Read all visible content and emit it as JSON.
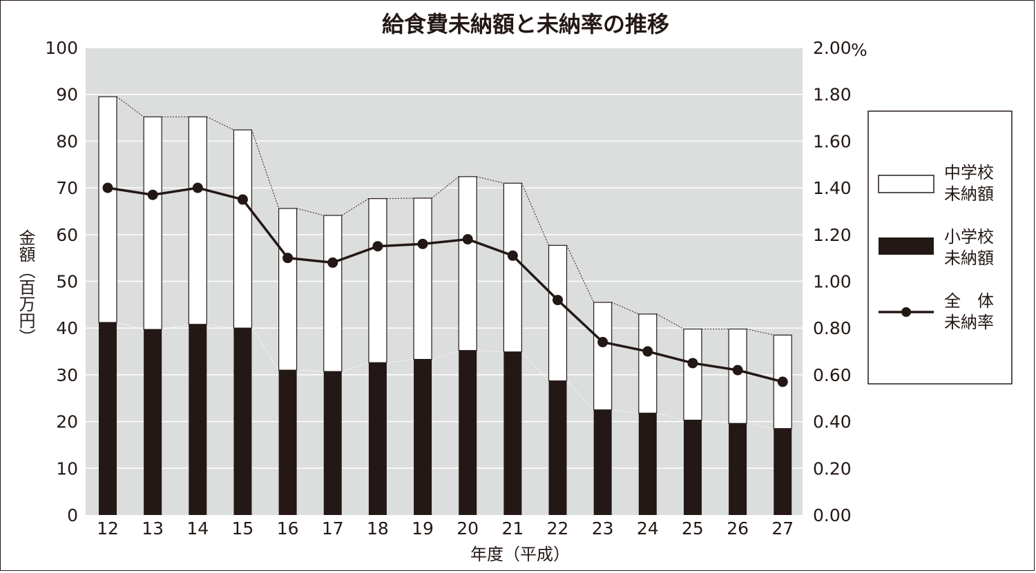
{
  "chart_data": {
    "type": "bar",
    "title": "給食費未納額と未納率の推移",
    "xlabel": "年度（平成）",
    "ylabel": "金額（百万円）",
    "y2_unit": "%",
    "categories": [
      "12",
      "13",
      "14",
      "15",
      "16",
      "17",
      "18",
      "19",
      "20",
      "21",
      "22",
      "23",
      "24",
      "25",
      "26",
      "27"
    ],
    "ylim": [
      0,
      100
    ],
    "y_ticks": [
      "0",
      "10",
      "20",
      "30",
      "40",
      "50",
      "60",
      "70",
      "80",
      "90",
      "100"
    ],
    "y2lim": [
      0,
      2.0
    ],
    "y2_ticks": [
      "0.00",
      "0.20",
      "0.40",
      "0.60",
      "0.80",
      "1.00",
      "1.20",
      "1.40",
      "1.60",
      "1.80",
      "2.00"
    ],
    "stacked": true,
    "grid": true,
    "legend_position": "right",
    "series": [
      {
        "name_lines": [
          "小学校",
          "未納額"
        ],
        "kind": "bar",
        "axis": "left",
        "color": "#231815",
        "values": [
          41.2,
          39.7,
          40.8,
          40.0,
          31.0,
          30.7,
          32.6,
          33.3,
          35.2,
          34.9,
          28.7,
          22.5,
          21.8,
          20.3,
          19.6,
          18.5
        ]
      },
      {
        "name_lines": [
          "中学校",
          "未納額"
        ],
        "kind": "bar",
        "axis": "left",
        "color": "#ffffff",
        "values": [
          48.3,
          45.5,
          44.4,
          42.4,
          34.6,
          33.4,
          35.1,
          34.5,
          37.2,
          36.1,
          29.0,
          23.0,
          21.2,
          19.5,
          20.2,
          20.0
        ]
      },
      {
        "name_lines": [
          "全　体",
          "未納率"
        ],
        "kind": "line",
        "axis": "right",
        "color": "#231815",
        "values": [
          1.4,
          1.37,
          1.4,
          1.35,
          1.1,
          1.08,
          1.15,
          1.16,
          1.18,
          1.11,
          0.92,
          0.74,
          0.7,
          0.65,
          0.62,
          0.57
        ]
      }
    ],
    "colors": {
      "plot_bg": "#dcdddd",
      "ink": "#231815",
      "grid": "#ffffff"
    }
  }
}
